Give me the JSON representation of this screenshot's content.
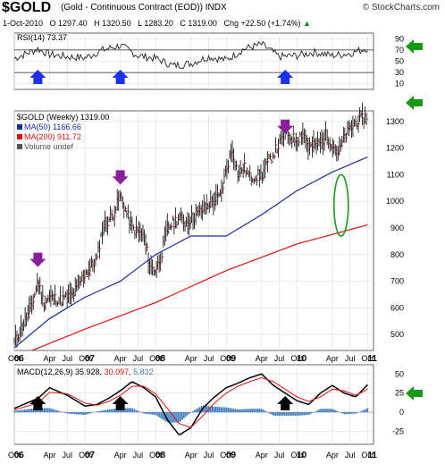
{
  "header": {
    "symbol": "$GOLD",
    "name": "(Gold - Continuous Contract (EOD)) INDX",
    "credit": "© StockCharts.com",
    "date": "1-Oct-2010",
    "open": "O 1297.40",
    "high": "H 1320.50",
    "low": "L 1283.20",
    "close": "C 1319.00",
    "change": "Chg +22.50 (+1.74%)",
    "change_arrow": "▲"
  },
  "rsi": {
    "label": "RSI(14) 73.37",
    "ticks": [
      "90",
      "70",
      "50",
      "30",
      "10"
    ],
    "ylim": [
      0,
      100
    ]
  },
  "price": {
    "label": "$GOLD (Weekly) 1319.00",
    "legend": [
      {
        "text": "MA(50) 1166.66",
        "color": "#1a2aa0"
      },
      {
        "text": "MA(200) 911.72",
        "color": "#e01010"
      },
      {
        "text": "Volume undef",
        "color": "#555555"
      }
    ],
    "ticks": [
      "1300",
      "1200",
      "1100",
      "1000",
      "900",
      "800",
      "700",
      "600",
      "500"
    ],
    "ylim": [
      440,
      1340
    ]
  },
  "xaxis": {
    "labels": [
      {
        "t": "Oct",
        "d": 0
      },
      {
        "t": "06",
        "d": 0.5,
        "bold": true
      },
      {
        "t": "Apr",
        "d": 6
      },
      {
        "t": "Jul",
        "d": 9
      },
      {
        "t": "Oct",
        "d": 12
      },
      {
        "t": "07",
        "d": 12.5,
        "bold": true
      },
      {
        "t": "Apr",
        "d": 18
      },
      {
        "t": "Jul",
        "d": 21
      },
      {
        "t": "Oct",
        "d": 24
      },
      {
        "t": "08",
        "d": 24.5,
        "bold": true
      },
      {
        "t": "Apr",
        "d": 30
      },
      {
        "t": "Jul",
        "d": 33
      },
      {
        "t": "Oct",
        "d": 36
      },
      {
        "t": "09",
        "d": 36.5,
        "bold": true
      },
      {
        "t": "Apr",
        "d": 42
      },
      {
        "t": "Jul",
        "d": 45
      },
      {
        "t": "Oct",
        "d": 48
      },
      {
        "t": "10",
        "d": 48.5,
        "bold": true
      },
      {
        "t": "Apr",
        "d": 54
      },
      {
        "t": "Jul",
        "d": 57
      },
      {
        "t": "Oct",
        "d": 60
      },
      {
        "t": "11",
        "d": 60.5,
        "bold": true
      }
    ]
  },
  "macd": {
    "label": "MACD(12,26,9)",
    "v1": "35.928,",
    "v2": "30.097,",
    "v3": "5.832",
    "ticks": [
      "50",
      "25",
      "0",
      "-25"
    ],
    "ylim": [
      -42,
      62
    ]
  },
  "chart_data": {
    "type": "line",
    "series": [
      {
        "name": "$GOLD (Weekly)",
        "x_month": [
          0,
          2,
          3,
          4,
          5,
          6,
          8,
          10,
          12,
          14,
          15,
          17,
          18,
          20,
          22,
          23,
          24,
          25,
          26,
          28,
          29,
          31,
          33,
          35,
          36,
          37,
          38,
          39,
          40,
          42,
          44,
          46,
          48,
          49,
          50,
          52,
          53,
          55,
          56,
          57,
          58,
          60
        ],
        "values": [
          470,
          560,
          610,
          700,
          620,
          640,
          630,
          650,
          730,
          780,
          900,
          960,
          1020,
          900,
          870,
          760,
          740,
          800,
          900,
          940,
          920,
          950,
          990,
          1020,
          1120,
          1200,
          1100,
          1130,
          1090,
          1100,
          1180,
          1250,
          1230,
          1260,
          1200,
          1220,
          1250,
          1180,
          1240,
          1270,
          1300,
          1319
        ]
      },
      {
        "name": "MA(50)",
        "x_month": [
          0,
          6,
          12,
          18,
          24,
          30,
          36,
          42,
          48,
          54,
          60
        ],
        "values": [
          450,
          560,
          640,
          700,
          800,
          870,
          870,
          950,
          1040,
          1110,
          1166.66
        ]
      },
      {
        "name": "MA(200)",
        "x_month": [
          3,
          12,
          24,
          36,
          48,
          60
        ],
        "values": [
          440,
          520,
          620,
          740,
          840,
          911.72
        ]
      },
      {
        "name": "RSI(14)",
        "x_month": [
          0,
          4,
          6,
          9,
          12,
          15,
          18,
          21,
          24,
          27,
          30,
          33,
          36,
          39,
          42,
          45,
          48,
          51,
          54,
          57,
          60
        ],
        "values": [
          55,
          72,
          62,
          58,
          56,
          70,
          78,
          60,
          55,
          42,
          46,
          58,
          52,
          72,
          80,
          58,
          60,
          66,
          60,
          64,
          73.37
        ]
      },
      {
        "name": "MACD(12,26,9)",
        "x_month": [
          0,
          4,
          6,
          9,
          12,
          14,
          16,
          18,
          20,
          22,
          24,
          25,
          26,
          28,
          30,
          32,
          34,
          36,
          38,
          40,
          42,
          44,
          46,
          48,
          50,
          52,
          54,
          56,
          58,
          60
        ],
        "values": [
          5,
          18,
          32,
          22,
          8,
          10,
          18,
          28,
          40,
          32,
          20,
          5,
          -10,
          -30,
          -20,
          5,
          20,
          32,
          38,
          45,
          50,
          35,
          25,
          15,
          10,
          25,
          35,
          25,
          20,
          35.928
        ]
      },
      {
        "name": "Signal",
        "x_month": [
          0,
          4,
          6,
          9,
          12,
          14,
          16,
          18,
          20,
          22,
          24,
          26,
          28,
          30,
          32,
          34,
          36,
          38,
          40,
          42,
          44,
          46,
          48,
          50,
          52,
          54,
          56,
          58,
          60
        ],
        "values": [
          3,
          12,
          26,
          24,
          12,
          9,
          14,
          22,
          34,
          34,
          24,
          5,
          -15,
          -20,
          -5,
          12,
          25,
          34,
          40,
          45,
          40,
          30,
          20,
          14,
          20,
          30,
          28,
          22,
          30.097
        ]
      }
    ],
    "annotations": [
      {
        "type": "arrow",
        "direction": "down",
        "color": "purple",
        "x_month": 4,
        "value": 740
      },
      {
        "type": "arrow",
        "direction": "down",
        "color": "purple",
        "x_month": 18,
        "value": 1050
      },
      {
        "type": "arrow",
        "direction": "down",
        "color": "purple",
        "x_month": 46,
        "value": 1240
      },
      {
        "type": "arrow",
        "direction": "up",
        "color": "blue",
        "x_month": 4,
        "value": 40
      },
      {
        "type": "arrow",
        "direction": "up",
        "color": "blue",
        "x_month": 18,
        "value": 40
      },
      {
        "type": "arrow",
        "direction": "up",
        "color": "blue",
        "x_month": 46,
        "value": 40
      },
      {
        "type": "arrow",
        "direction": "up",
        "color": "black",
        "x_month": 4,
        "value": 10
      },
      {
        "type": "arrow",
        "direction": "up",
        "color": "black",
        "x_month": 18,
        "value": 10
      },
      {
        "type": "arrow",
        "direction": "up",
        "color": "black",
        "x_month": 46,
        "value": 10
      },
      {
        "type": "arrow",
        "direction": "left",
        "color": "green",
        "value": 90
      },
      {
        "type": "arrow",
        "direction": "left",
        "color": "green",
        "value": 1315
      },
      {
        "type": "arrow",
        "direction": "left",
        "color": "green",
        "value": 40
      },
      {
        "type": "ellipse",
        "color": "green",
        "x_month": [
          54,
          57
        ],
        "value_range": [
          870,
          1100
        ]
      }
    ]
  }
}
